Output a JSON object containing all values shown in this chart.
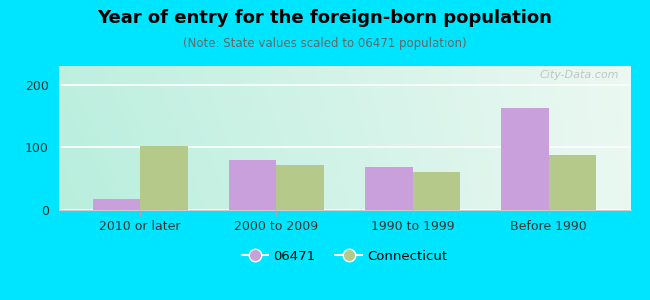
{
  "title": "Year of entry for the foreign-born population",
  "subtitle": "(Note: State values scaled to 06471 population)",
  "categories": [
    "2010 or later",
    "2000 to 2009",
    "1990 to 1999",
    "Before 1990"
  ],
  "values_06471": [
    18,
    80,
    68,
    163
  ],
  "values_connecticut": [
    102,
    72,
    60,
    88
  ],
  "bar_color_06471": "#c9a0dc",
  "bar_color_connecticut": "#b5c98a",
  "background_outer": "#00e5ff",
  "ylim": [
    0,
    230
  ],
  "yticks": [
    0,
    100,
    200
  ],
  "bar_width": 0.35,
  "legend_label_06471": "06471",
  "legend_label_connecticut": "Connecticut",
  "watermark": "City-Data.com",
  "grad_left": "#b8eedd",
  "grad_right": "#eaf5ee"
}
